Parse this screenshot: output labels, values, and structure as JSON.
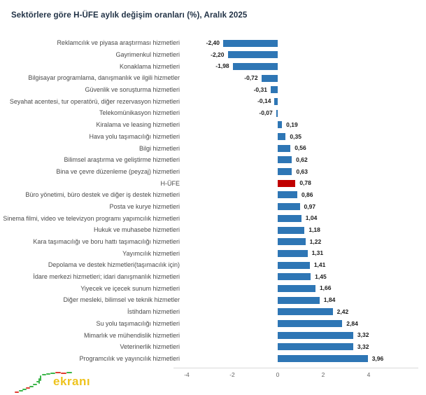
{
  "title": "Sektörlere göre H-ÜFE aylık değişim oranları (%), Aralık 2025",
  "colors": {
    "bar_blue": "#2e76b5",
    "bar_highlight_red": "#c00000",
    "axis_line": "#d9d9d9",
    "logo_yellow": "#eec31e",
    "logo_green": "#3cb54a",
    "logo_red": "#e03c31"
  },
  "logo": {
    "word": "ekranı",
    "icon": "candlestick-trend"
  },
  "axis": {
    "ticks": [
      "-4",
      "-2",
      "0",
      "2",
      "4"
    ],
    "tick_values": [
      -4,
      -2,
      0,
      2,
      4
    ]
  },
  "chart_data": {
    "type": "bar",
    "orientation": "horizontal",
    "title": "Sektörlere göre H-ÜFE aylık değişim oranları (%), Aralık 2025",
    "xlabel": "",
    "ylabel": "",
    "xlim": [
      -4,
      5
    ],
    "grid": false,
    "legend": false,
    "highlight_category": "H-ÜFE",
    "categories": [
      "Reklamcılık ve piyasa araştırması hizmetleri",
      "Gayrimenkul hizmetleri",
      "Konaklama hizmetleri",
      "Bilgisayar programlama, danışmanlık ve ilgili hizmetler",
      "Güvenlik ve soruşturma hizmetleri",
      "Seyahat acentesi, tur operatörü, diğer rezervasyon hizmetleri",
      "Telekomünikasyon hizmetleri",
      "Kiralama ve leasing hizmetleri",
      "Hava yolu taşımacılığı hizmetleri",
      "Bilgi hizmetleri",
      "Bilimsel araştırma ve geliştirme hizmetleri",
      "Bina ve çevre düzenleme (peyzaj) hizmetleri",
      "H-ÜFE",
      "Büro yönetimi, büro destek ve diğer iş destek hizmetleri",
      "Posta ve kurye hizmetleri",
      "Sinema filmi, video ve televizyon programı yapımcılık hizmetleri",
      "Hukuk ve muhasebe hizmetleri",
      "Kara taşımacılığı ve boru hattı taşımacılığı hizmetleri",
      "Yayımcılık hizmetleri",
      "Depolama ve destek hizmetleri(taşımacılık için)",
      "İdare merkezi hizmetleri; idari danışmanlık hizmetleri",
      "Yiyecek ve içecek sunum hizmetleri",
      "Diğer mesleki, bilimsel ve teknik hizmetler",
      "İstihdam hizmetleri",
      "Su yolu taşımacılığı hizmetleri",
      "Mimarlık ve mühendislik hizmetleri",
      "Veterinerlik hizmetleri",
      "Programcılık ve yayıncılık hizmetleri"
    ],
    "values": [
      -2.4,
      -2.2,
      -1.98,
      -0.72,
      -0.31,
      -0.14,
      -0.07,
      0.19,
      0.35,
      0.56,
      0.62,
      0.63,
      0.78,
      0.86,
      0.97,
      1.04,
      1.18,
      1.22,
      1.31,
      1.41,
      1.45,
      1.66,
      1.84,
      2.42,
      2.84,
      3.32,
      3.32,
      3.96
    ],
    "value_labels": [
      "-2,40",
      "-2,20",
      "-1,98",
      "-0,72",
      "-0,31",
      "-0,14",
      "-0,07",
      "0,19",
      "0,35",
      "0,56",
      "0,62",
      "0,63",
      "0,78",
      "0,86",
      "0,97",
      "1,04",
      "1,18",
      "1,22",
      "1,31",
      "1,41",
      "1,45",
      "1,66",
      "1,84",
      "2,42",
      "2,84",
      "3,32",
      "3,32",
      "3,96"
    ]
  }
}
